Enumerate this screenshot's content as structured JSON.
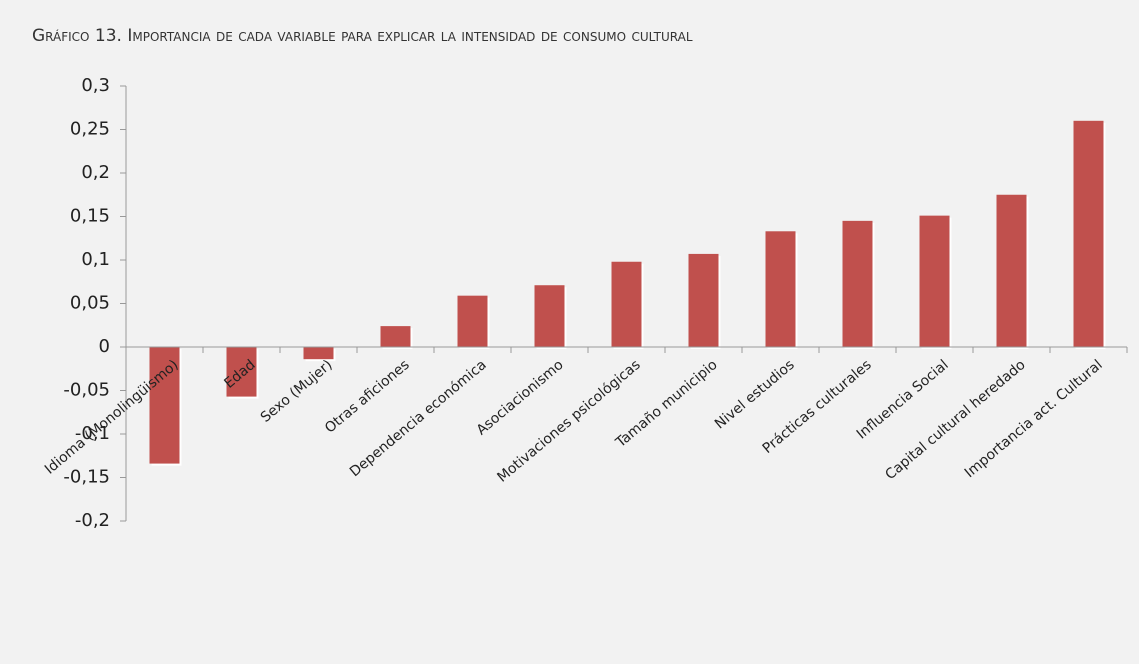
{
  "chart_data": {
    "type": "bar",
    "title": "Gráfico 13. Importancia de cada variable para explicar la intensidad de consumo cultural",
    "categories": [
      "Idioma (Monolingüismo)",
      "Edad",
      "Sexo (Mujer)",
      "Otras aficiones",
      "Dependencia económica",
      "Asociacionismo",
      "Motivaciones psicológicas",
      "Tamaño municipio",
      "Nivel estudios",
      "Prácticas culturales",
      "Influencia Social",
      "Capital cultural heredado",
      "Importancia act. Cultural"
    ],
    "values": [
      -0.134,
      -0.057,
      -0.014,
      0.024,
      0.059,
      0.071,
      0.098,
      0.107,
      0.133,
      0.145,
      0.151,
      0.175,
      0.26
    ],
    "color": "#c0504d",
    "ylim": [
      -0.2,
      0.3
    ],
    "yticks": [
      {
        "value": -0.2,
        "label": "-0,2"
      },
      {
        "value": -0.15,
        "label": "-0,15"
      },
      {
        "value": -0.1,
        "label": "-0,1"
      },
      {
        "value": -0.05,
        "label": "-0,05"
      },
      0,
      {
        "value": 0.05,
        "label": "0,05"
      },
      {
        "value": 0.1,
        "label": "0,1"
      },
      {
        "value": 0.15,
        "label": "0,15"
      },
      {
        "value": 0.2,
        "label": "0,2"
      },
      {
        "value": 0.25,
        "label": "0,25"
      },
      {
        "value": 0.3,
        "label": "0,3"
      }
    ],
    "grid": false
  }
}
